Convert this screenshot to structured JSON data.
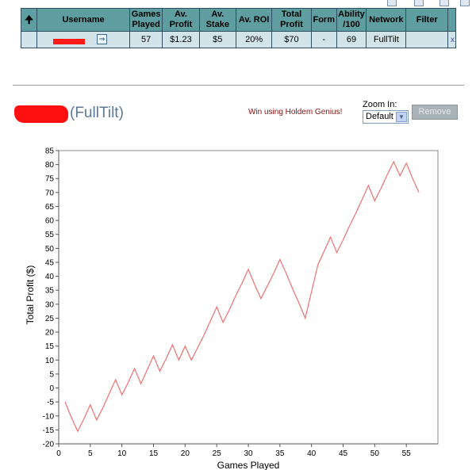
{
  "table": {
    "headers": {
      "sort": "🠉",
      "username": "Username",
      "games_played": "Games Played",
      "av_profit": "Av. Profit",
      "av_stake": "Av. Stake",
      "av_roi": "Av. ROI",
      "total_profit": "Total Profit",
      "form": "Form",
      "ability": "Ability /100",
      "network": "Network",
      "filter": "Filter"
    },
    "row": {
      "games_played": "57",
      "av_profit": "$1.23",
      "av_stake": "$5",
      "av_roi": "20%",
      "total_profit": "$70",
      "form": "-",
      "ability": "69",
      "network": "FullTilt",
      "filter_remove": "x"
    }
  },
  "player": {
    "network_label": "(FullTilt)"
  },
  "promo_text": "Win using Holdem Genius!",
  "zoom": {
    "label": "Zoom In:",
    "selected": "Default"
  },
  "remove_button": "Remove",
  "colors": {
    "header_bg": "#5f9ea0",
    "row_bg": "#d3e3ea",
    "line": "#f07070",
    "redaction": "#ff1010"
  },
  "chart_data": {
    "type": "line",
    "xlabel": "Games Played",
    "ylabel": "Total Profit ($)",
    "xlim": [
      0,
      60
    ],
    "ylim": [
      -20,
      85
    ],
    "xticks": [
      0,
      5,
      10,
      15,
      20,
      25,
      30,
      35,
      40,
      45,
      50,
      55
    ],
    "yticks": [
      -20,
      -15,
      -10,
      -5,
      0,
      5,
      10,
      15,
      20,
      25,
      30,
      35,
      40,
      45,
      50,
      55,
      60,
      65,
      70,
      75,
      80,
      85
    ],
    "grid": true,
    "zero_line": true,
    "series": [
      {
        "x": [
          1,
          2,
          3,
          4,
          5,
          6,
          7,
          8,
          9,
          10,
          11,
          12,
          13,
          14,
          15,
          16,
          17,
          18,
          19,
          20,
          21,
          22,
          23,
          24,
          25,
          26,
          27,
          28,
          29,
          30,
          31,
          32,
          33,
          34,
          35,
          36,
          37,
          38,
          39,
          40,
          41,
          42,
          43,
          44,
          45,
          46,
          47,
          48,
          49,
          50,
          51,
          52,
          53,
          54,
          55,
          56,
          57
        ],
        "y": [
          -5,
          -10.5,
          -15.5,
          -11,
          -6,
          -11.5,
          -7,
          -2,
          3,
          -2.5,
          2,
          7,
          1.5,
          6.5,
          11.5,
          6,
          10.5,
          15.5,
          10,
          15,
          10,
          14.5,
          19,
          24,
          29,
          23.5,
          28,
          33,
          37.5,
          42.5,
          37,
          32,
          36.5,
          41,
          46,
          41,
          35.5,
          30.5,
          25,
          34.5,
          44,
          49,
          54,
          48.5,
          53,
          58,
          62.5,
          67.5,
          72.5,
          67,
          71.5,
          76.5,
          81,
          76,
          80.5,
          75,
          70
        ]
      }
    ]
  }
}
